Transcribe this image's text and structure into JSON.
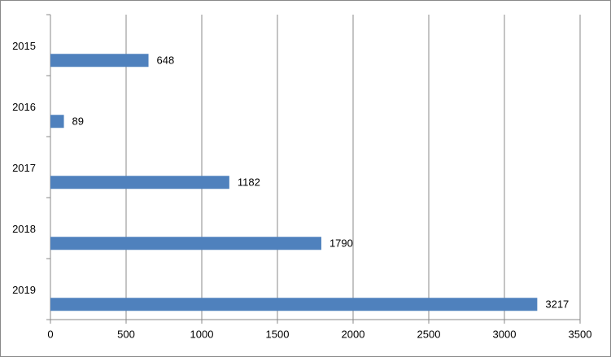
{
  "chart_data": {
    "type": "bar",
    "orientation": "horizontal",
    "categories": [
      "2015",
      "2016",
      "2017",
      "2018",
      "2019"
    ],
    "values": [
      648,
      89,
      1182,
      1790,
      3217
    ],
    "color": "#4f81bd",
    "xlim": [
      0,
      3500
    ],
    "xticks": [
      0,
      500,
      1000,
      1500,
      2000,
      2500,
      3000,
      3500
    ],
    "grid": true
  }
}
